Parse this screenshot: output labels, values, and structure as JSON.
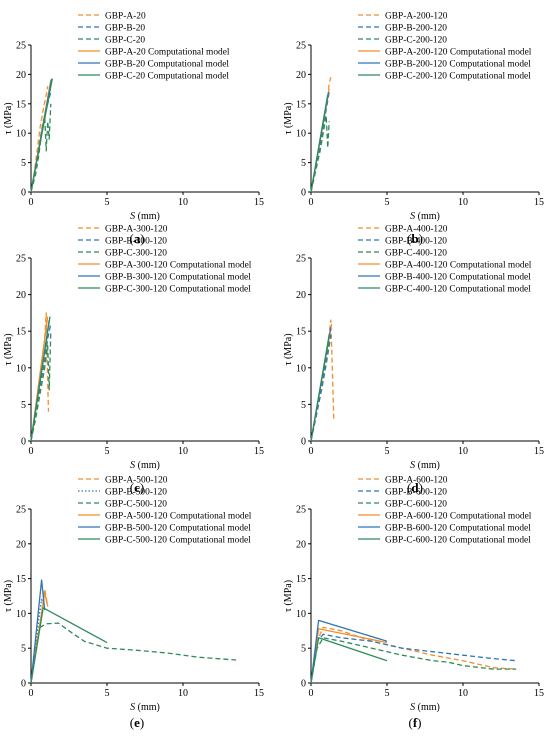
{
  "colors": {
    "orange": "#F28E2B",
    "blue": "#2E75B6",
    "green": "#2E8B57"
  },
  "axes": {
    "xlabel_var": "S",
    "xlabel_unit": " (mm)",
    "ylabel": "τ (MPa)"
  },
  "chart_data": [
    {
      "type": "line",
      "caption": "(a)",
      "xlim": [
        0,
        15
      ],
      "ylim": [
        0,
        25
      ],
      "xticks": [
        0,
        5,
        10,
        15
      ],
      "yticks": [
        0,
        5,
        10,
        15,
        20,
        25
      ],
      "legend": "top-left",
      "series": [
        {
          "name": "GBP-A-20",
          "color": "orange",
          "dash": "dashed",
          "x": [
            0,
            0.2,
            0.4,
            0.6,
            0.8,
            1.0,
            1.1
          ],
          "y": [
            0,
            3,
            7,
            11,
            14,
            16.5,
            18
          ]
        },
        {
          "name": "GBP-B-20",
          "color": "blue",
          "dash": "dashed",
          "x": [
            0,
            0.2,
            0.4,
            0.6,
            0.8,
            1.0,
            1.2,
            1.3
          ],
          "y": [
            0,
            2.5,
            5.5,
            9,
            12,
            14,
            16,
            17
          ]
        },
        {
          "name": "GBP-C-20",
          "color": "green",
          "dash": "dashed",
          "x": [
            0,
            0.3,
            0.5,
            0.7,
            0.9,
            1.0,
            1.1,
            1.2,
            1.3
          ],
          "y": [
            0,
            3,
            6,
            10,
            13,
            7,
            12,
            9,
            15
          ]
        },
        {
          "name": "GBP-A-20 Computational model",
          "color": "orange",
          "dash": "solid",
          "x": [
            0,
            1.3
          ],
          "y": [
            0,
            19
          ]
        },
        {
          "name": "GBP-B-20 Computational model",
          "color": "blue",
          "dash": "solid",
          "x": [
            0,
            1.35
          ],
          "y": [
            0,
            19.2
          ]
        },
        {
          "name": "GBP-C-20 Computational model",
          "color": "green",
          "dash": "solid",
          "x": [
            0,
            1.4
          ],
          "y": [
            0,
            19.3
          ]
        }
      ]
    },
    {
      "type": "line",
      "caption": "(b)",
      "xlim": [
        0,
        15
      ],
      "ylim": [
        0,
        25
      ],
      "xticks": [
        0,
        5,
        10,
        15
      ],
      "yticks": [
        0,
        5,
        10,
        15,
        20,
        25
      ],
      "legend": "top-left",
      "series": [
        {
          "name": "GBP-A-200-120",
          "color": "orange",
          "dash": "dashed",
          "x": [
            0,
            0.3,
            0.6,
            0.9,
            1.1,
            1.2,
            1.3
          ],
          "y": [
            0,
            4,
            9,
            13,
            16,
            18.5,
            19.5
          ]
        },
        {
          "name": "GBP-B-200-120",
          "color": "blue",
          "dash": "dashed",
          "x": [
            0,
            0.3,
            0.6,
            0.8,
            1.0,
            1.2
          ],
          "y": [
            0,
            4,
            8,
            11,
            14,
            17
          ]
        },
        {
          "name": "GBP-C-200-120",
          "color": "green",
          "dash": "dashed",
          "x": [
            0,
            0.3,
            0.6,
            0.8,
            1.0,
            1.1,
            1.2
          ],
          "y": [
            0,
            3.5,
            7,
            10,
            13,
            7.5,
            12
          ]
        },
        {
          "name": "GBP-A-200-120 Computational model",
          "color": "orange",
          "dash": "solid",
          "x": [
            0,
            1.2
          ],
          "y": [
            0,
            17.5
          ]
        },
        {
          "name": "GBP-B-200-120 Computational model",
          "color": "blue",
          "dash": "solid",
          "x": [
            0,
            1.15
          ],
          "y": [
            0,
            17
          ]
        },
        {
          "name": "GBP-C-200-120 Computational model",
          "color": "green",
          "dash": "solid",
          "x": [
            0,
            1.1
          ],
          "y": [
            0,
            16.5
          ]
        }
      ]
    },
    {
      "type": "line",
      "caption": "(c)",
      "xlim": [
        0,
        15
      ],
      "ylim": [
        0,
        25
      ],
      "xticks": [
        0,
        5,
        10,
        15
      ],
      "yticks": [
        0,
        5,
        10,
        15,
        20,
        25
      ],
      "legend": "top-left",
      "series": [
        {
          "name": "GBP-A-300-120",
          "color": "orange",
          "dash": "dashed",
          "x": [
            0,
            0.3,
            0.6,
            0.9,
            1.0,
            1.1,
            1.15
          ],
          "y": [
            0,
            4,
            9,
            14,
            17.5,
            8,
            4
          ]
        },
        {
          "name": "GBP-B-300-120",
          "color": "blue",
          "dash": "dashed",
          "x": [
            0,
            0.3,
            0.6,
            0.9,
            1.1,
            1.3
          ],
          "y": [
            0,
            3.5,
            7.5,
            11,
            14,
            16
          ]
        },
        {
          "name": "GBP-C-300-120",
          "color": "green",
          "dash": "dashed",
          "x": [
            0,
            0.3,
            0.6,
            0.9,
            1.1,
            1.2,
            1.3
          ],
          "y": [
            0,
            3,
            6.5,
            10,
            13,
            7,
            15
          ]
        },
        {
          "name": "GBP-A-300-120 Computational model",
          "color": "orange",
          "dash": "solid",
          "x": [
            0,
            1.1
          ],
          "y": [
            0,
            17
          ]
        },
        {
          "name": "GBP-B-300-120 Computational model",
          "color": "blue",
          "dash": "solid",
          "x": [
            0,
            1.2
          ],
          "y": [
            0,
            16.5
          ]
        },
        {
          "name": "GBP-C-300-120 Computational model",
          "color": "green",
          "dash": "solid",
          "x": [
            0,
            1.25
          ],
          "y": [
            0,
            17
          ]
        }
      ]
    },
    {
      "type": "line",
      "caption": "(d)",
      "xlim": [
        0,
        15
      ],
      "ylim": [
        0,
        25
      ],
      "xticks": [
        0,
        5,
        10,
        15
      ],
      "yticks": [
        0,
        5,
        10,
        15,
        20,
        25
      ],
      "legend": "top-left",
      "series": [
        {
          "name": "GBP-A-400-120",
          "color": "orange",
          "dash": "dashed",
          "x": [
            0,
            0.4,
            0.8,
            1.1,
            1.3,
            1.4,
            1.5
          ],
          "y": [
            0,
            4,
            9,
            13,
            16.5,
            10,
            3
          ]
        },
        {
          "name": "GBP-B-400-120",
          "color": "blue",
          "dash": "dashed",
          "x": [
            0,
            0.3,
            0.7,
            1.0,
            1.2,
            1.3
          ],
          "y": [
            0,
            3,
            7,
            10.5,
            13,
            14.5
          ]
        },
        {
          "name": "GBP-C-400-120",
          "color": "green",
          "dash": "dashed",
          "x": [
            0,
            0.3,
            0.7,
            1.0,
            1.2
          ],
          "y": [
            0,
            3.5,
            8,
            11,
            13.5
          ]
        },
        {
          "name": "GBP-A-400-120 Computational model",
          "color": "orange",
          "dash": "solid",
          "x": [
            0,
            1.35
          ],
          "y": [
            0,
            16
          ]
        },
        {
          "name": "GBP-B-400-120 Computational model",
          "color": "blue",
          "dash": "solid",
          "x": [
            0,
            1.3
          ],
          "y": [
            0,
            15.5
          ]
        },
        {
          "name": "GBP-C-400-120 Computational model",
          "color": "green",
          "dash": "solid",
          "x": [
            0,
            1.2
          ],
          "y": [
            0,
            14.5
          ]
        }
      ]
    },
    {
      "type": "line",
      "caption": "(e)",
      "xlim": [
        0,
        15
      ],
      "ylim": [
        0,
        25
      ],
      "xticks": [
        0,
        5,
        10,
        15
      ],
      "yticks": [
        0,
        5,
        10,
        15,
        20,
        25
      ],
      "legend": "top-left",
      "series": [
        {
          "name": "GBP-A-500-120",
          "color": "orange",
          "dash": "dashed",
          "x": [
            0,
            0.4,
            0.7,
            0.9,
            1.1
          ],
          "y": [
            0,
            6,
            10,
            13.5,
            11
          ]
        },
        {
          "name": "GBP-B-500-120",
          "color": "blue",
          "dash": "dotted",
          "x": [
            0,
            0.3,
            0.5,
            0.7,
            0.9
          ],
          "y": [
            0,
            5,
            9,
            12,
            11
          ]
        },
        {
          "name": "GBP-C-500-120",
          "color": "green",
          "dash": "dashed",
          "x": [
            0,
            0.3,
            0.6,
            1.0,
            1.8,
            2.5,
            3.5,
            5.0,
            7.0,
            9.0,
            11.0,
            13.5
          ],
          "y": [
            0,
            5,
            8,
            8.5,
            8.6,
            7.5,
            6,
            5.0,
            4.7,
            4.3,
            3.7,
            3.3
          ]
        },
        {
          "name": "GBP-A-500-120 Computational model",
          "color": "orange",
          "dash": "solid",
          "x": [
            0,
            0.9,
            1.1
          ],
          "y": [
            0,
            13,
            11
          ]
        },
        {
          "name": "GBP-B-500-120 Computational model",
          "color": "blue",
          "dash": "solid",
          "x": [
            0,
            0.7,
            0.9
          ],
          "y": [
            0,
            14.8,
            10.5
          ]
        },
        {
          "name": "GBP-C-500-120 Computational model",
          "color": "green",
          "dash": "solid",
          "x": [
            0,
            0.8,
            5.0
          ],
          "y": [
            0,
            10.8,
            5.8
          ]
        }
      ]
    },
    {
      "type": "line",
      "caption": "(f)",
      "xlim": [
        0,
        15
      ],
      "ylim": [
        0,
        25
      ],
      "xticks": [
        0,
        5,
        10,
        15
      ],
      "yticks": [
        0,
        5,
        10,
        15,
        20,
        25
      ],
      "legend": "top-left",
      "series": [
        {
          "name": "GBP-A-600-120",
          "color": "orange",
          "dash": "dashed",
          "x": [
            0,
            0.4,
            0.8,
            2.0,
            4.0,
            6.0,
            8.0,
            10.0,
            12.0,
            13.5
          ],
          "y": [
            0,
            6,
            8,
            7.5,
            6,
            5,
            4,
            3.2,
            2.2,
            2.0
          ]
        },
        {
          "name": "GBP-B-600-120",
          "color": "blue",
          "dash": "dashed",
          "x": [
            0,
            0.4,
            0.8,
            2.0,
            4.0,
            6.0,
            8.0,
            10.0,
            12.0,
            13.5
          ],
          "y": [
            0,
            6,
            7,
            6.5,
            6,
            5,
            4.5,
            4,
            3.5,
            3.2
          ]
        },
        {
          "name": "GBP-C-600-120",
          "color": "green",
          "dash": "dashed",
          "x": [
            0,
            0.4,
            0.8,
            2.0,
            4.0,
            6.0,
            8.0,
            9.0,
            10.0,
            12.0,
            13.5
          ],
          "y": [
            0,
            5,
            6.5,
            6,
            5,
            4,
            3.2,
            3.0,
            2.5,
            2.0,
            2.0
          ]
        },
        {
          "name": "GBP-A-600-120 Computational model",
          "color": "orange",
          "dash": "solid",
          "x": [
            0,
            0.5,
            5.0
          ],
          "y": [
            0,
            7.8,
            5.8
          ]
        },
        {
          "name": "GBP-B-600-120 Computational model",
          "color": "blue",
          "dash": "solid",
          "x": [
            0,
            0.5,
            5.0
          ],
          "y": [
            0,
            9.0,
            6.0
          ]
        },
        {
          "name": "GBP-C-600-120 Computational model",
          "color": "green",
          "dash": "solid",
          "x": [
            0,
            0.5,
            5.0
          ],
          "y": [
            0,
            6.5,
            3.2
          ]
        }
      ]
    }
  ]
}
